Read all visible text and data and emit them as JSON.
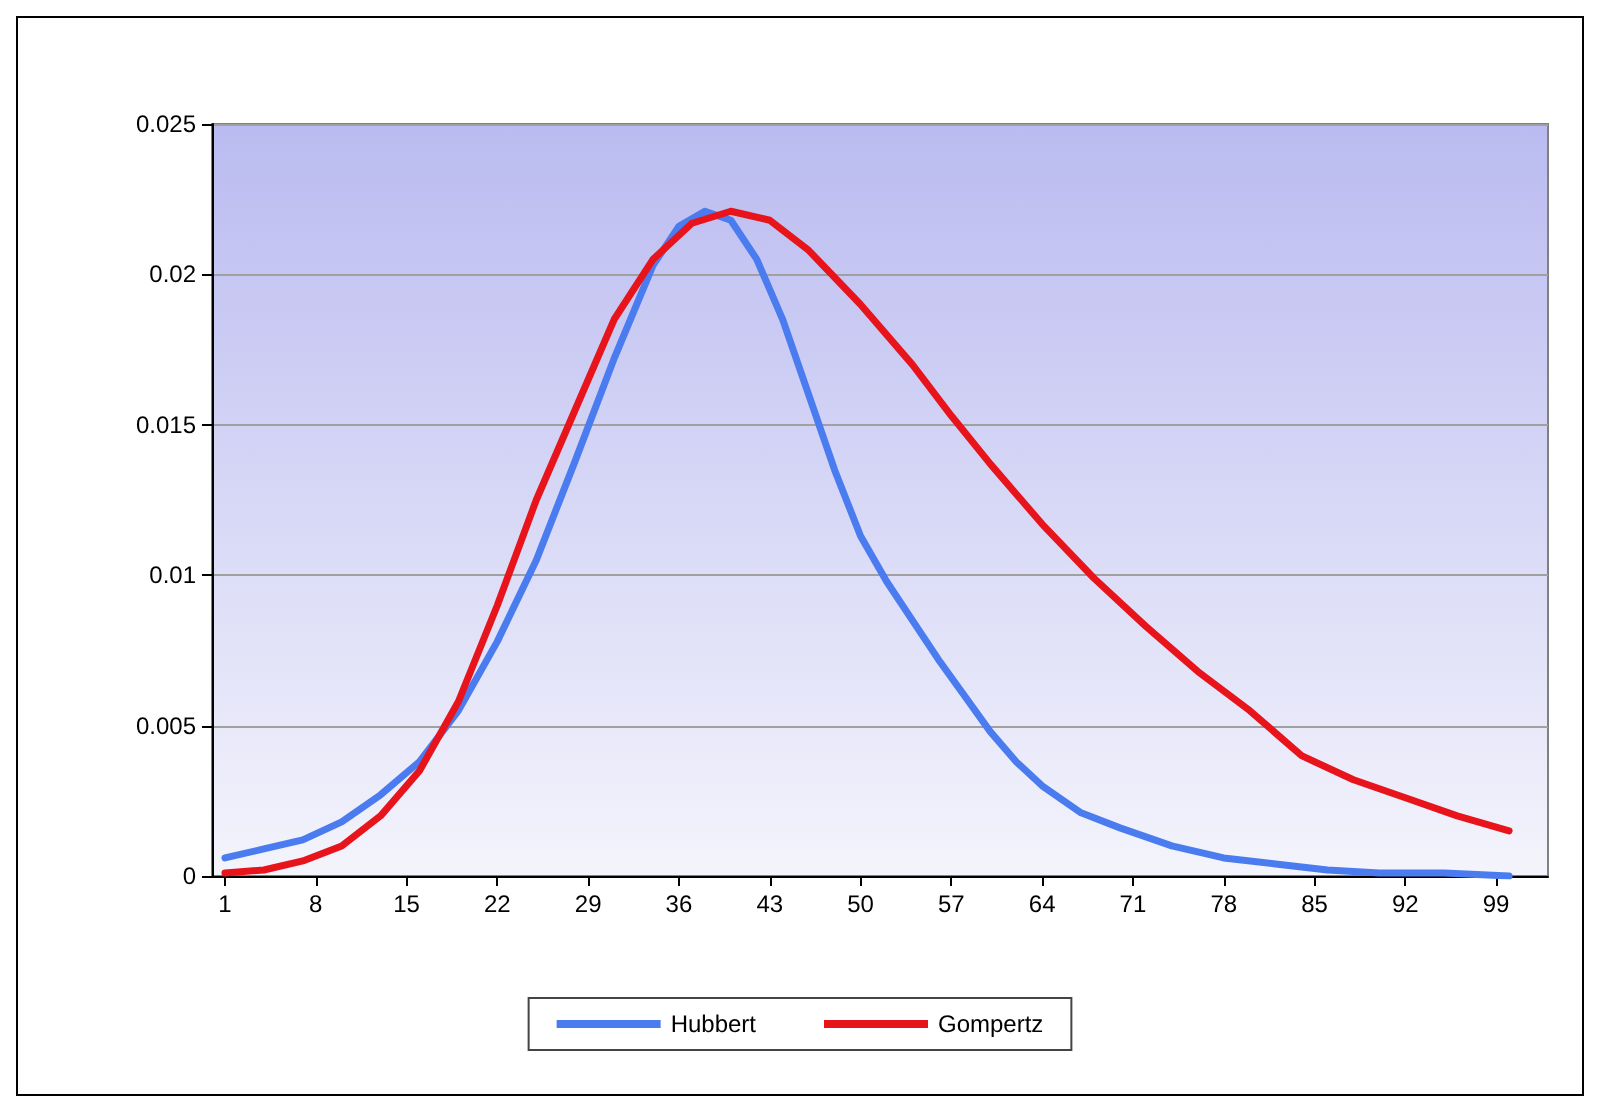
{
  "chart_data": {
    "type": "line",
    "xlim": [
      0,
      103
    ],
    "xticks": [
      1,
      8,
      15,
      22,
      29,
      36,
      43,
      50,
      57,
      64,
      71,
      78,
      85,
      92,
      99
    ],
    "ylim": [
      0,
      0.025
    ],
    "yticks": [
      0,
      0.005,
      0.01,
      0.015,
      0.02,
      0.025
    ],
    "grid": "y",
    "legend": "bottom",
    "marker": "none",
    "line_style": "solid",
    "series": [
      {
        "name": "Hubbert",
        "color": "#4a7cf0",
        "x": [
          1,
          4,
          7,
          10,
          13,
          16,
          19,
          22,
          25,
          28,
          31,
          34,
          36,
          38,
          40,
          42,
          44,
          46,
          48,
          50,
          52,
          54,
          56,
          58,
          60,
          62,
          64,
          67,
          70,
          74,
          78,
          82,
          86,
          90,
          95,
          100
        ],
        "values": [
          0.0006,
          0.0009,
          0.0012,
          0.0018,
          0.0027,
          0.0038,
          0.0055,
          0.0078,
          0.0105,
          0.0138,
          0.0172,
          0.0203,
          0.0216,
          0.0221,
          0.0218,
          0.0205,
          0.0185,
          0.016,
          0.0135,
          0.0113,
          0.0098,
          0.0085,
          0.0072,
          0.006,
          0.0048,
          0.0038,
          0.003,
          0.0021,
          0.0016,
          0.001,
          0.0006,
          0.0004,
          0.0002,
          0.0001,
          0.0001,
          0
        ]
      },
      {
        "name": "Gompertz",
        "color": "#e8141c",
        "x": [
          1,
          4,
          7,
          10,
          13,
          16,
          19,
          22,
          25,
          28,
          31,
          34,
          37,
          40,
          43,
          46,
          50,
          54,
          57,
          60,
          64,
          68,
          72,
          76,
          80,
          84,
          88,
          92,
          96,
          100
        ],
        "values": [
          0.0001,
          0.0002,
          0.0005,
          0.001,
          0.002,
          0.0035,
          0.0058,
          0.009,
          0.0125,
          0.0155,
          0.0185,
          0.0205,
          0.0217,
          0.0221,
          0.0218,
          0.0208,
          0.019,
          0.017,
          0.0153,
          0.0137,
          0.0117,
          0.0099,
          0.0083,
          0.0068,
          0.0055,
          0.004,
          0.0032,
          0.0026,
          0.002,
          0.0015
        ]
      }
    ]
  }
}
